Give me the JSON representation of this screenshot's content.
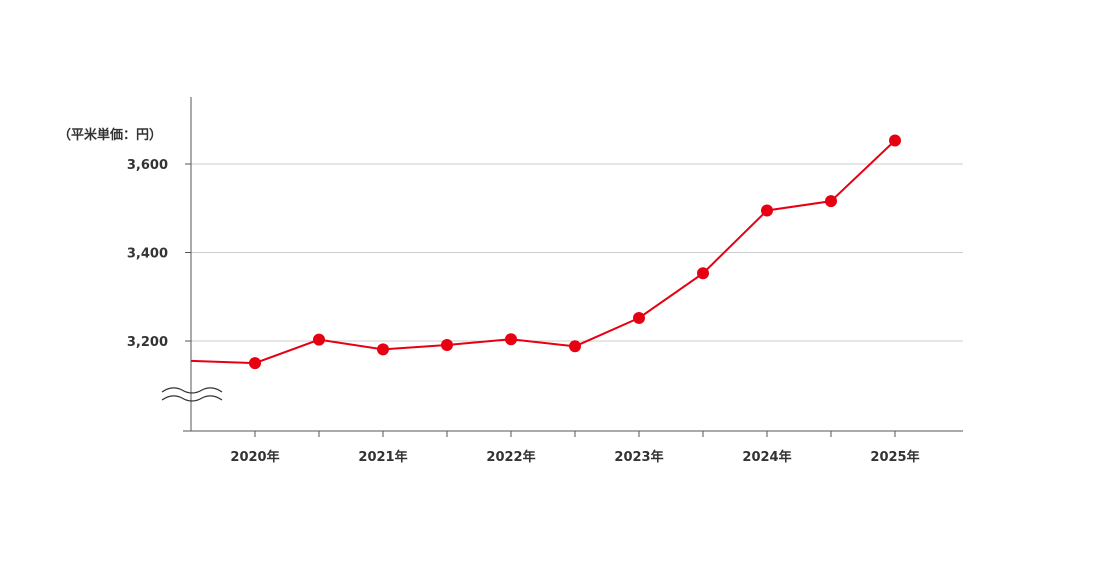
{
  "chart_data": {
    "type": "line",
    "unit_label": "（平米単価：円）",
    "x_tick_labels": [
      "2020年",
      "2021年",
      "2022年",
      "2023年",
      "2024年",
      "2025年"
    ],
    "y_tick_labels": [
      "3,200",
      "3,400",
      "3,600"
    ],
    "y_ticks": [
      3200,
      3400,
      3600
    ],
    "ylim": [
      3000,
      3750
    ],
    "axis_break": true,
    "grid": "horizontal",
    "series": [
      {
        "color": "#e60012",
        "x": [
          2019.5,
          2020.0,
          2020.5,
          2021.0,
          2021.5,
          2022.0,
          2022.5,
          2023.0,
          2023.5,
          2024.0,
          2024.5,
          2025.0
        ],
        "values": [
          3155,
          3150,
          3203,
          3181,
          3191,
          3204,
          3188,
          3252,
          3353,
          3495,
          3516,
          3653
        ],
        "markers": [
          false,
          true,
          true,
          true,
          true,
          true,
          true,
          true,
          true,
          true,
          true,
          true
        ]
      }
    ]
  }
}
